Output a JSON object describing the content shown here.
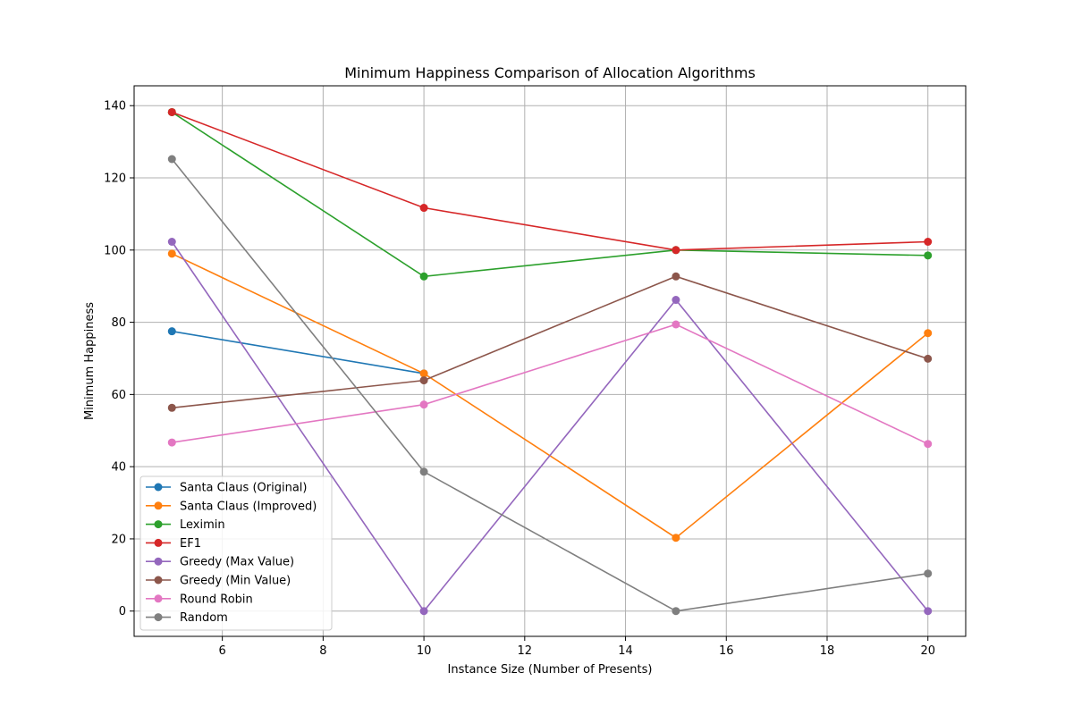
{
  "chart_data": {
    "type": "line",
    "title": "Minimum Happiness Comparison of Allocation Algorithms",
    "xlabel": "Instance Size (Number of Presents)",
    "ylabel": "Minimum Happiness",
    "xlim": [
      4.25,
      20.75
    ],
    "ylim": [
      -7,
      145.5
    ],
    "xticks": [
      6,
      8,
      10,
      12,
      14,
      16,
      18,
      20
    ],
    "yticks": [
      0,
      20,
      40,
      60,
      80,
      100,
      120,
      140
    ],
    "grid": true,
    "legend_position": "lower-left",
    "x": [
      5,
      10,
      15,
      20
    ],
    "series": [
      {
        "name": "Santa Claus (Original)",
        "color": "#1f77b4",
        "x": [
          5,
          10
        ],
        "values": [
          77.5,
          65.8
        ]
      },
      {
        "name": "Santa Claus (Improved)",
        "color": "#ff7f0e",
        "x": [
          5,
          10,
          15,
          20
        ],
        "values": [
          99,
          65.8,
          20.3,
          77
        ]
      },
      {
        "name": "Leximin",
        "color": "#2ca02c",
        "x": [
          5,
          10,
          15,
          20
        ],
        "values": [
          138.2,
          92.7,
          100,
          98.5
        ]
      },
      {
        "name": "EF1",
        "color": "#d62728",
        "x": [
          5,
          10,
          15,
          20
        ],
        "values": [
          138.2,
          111.7,
          100,
          102.3
        ]
      },
      {
        "name": "Greedy (Max Value)",
        "color": "#9467bd",
        "x": [
          5,
          10,
          15,
          20
        ],
        "values": [
          102.3,
          0,
          86.2,
          0
        ]
      },
      {
        "name": "Greedy (Min Value)",
        "color": "#8c564b",
        "x": [
          5,
          10,
          15,
          20
        ],
        "values": [
          56.3,
          63.9,
          92.7,
          69.9
        ]
      },
      {
        "name": "Round Robin",
        "color": "#e377c2",
        "x": [
          5,
          10,
          15,
          20
        ],
        "values": [
          46.7,
          57.2,
          79.4,
          46.3
        ]
      },
      {
        "name": "Random",
        "color": "#7f7f7f",
        "x": [
          5,
          10,
          15,
          20
        ],
        "values": [
          125.2,
          38.6,
          0,
          10.4
        ]
      }
    ]
  }
}
